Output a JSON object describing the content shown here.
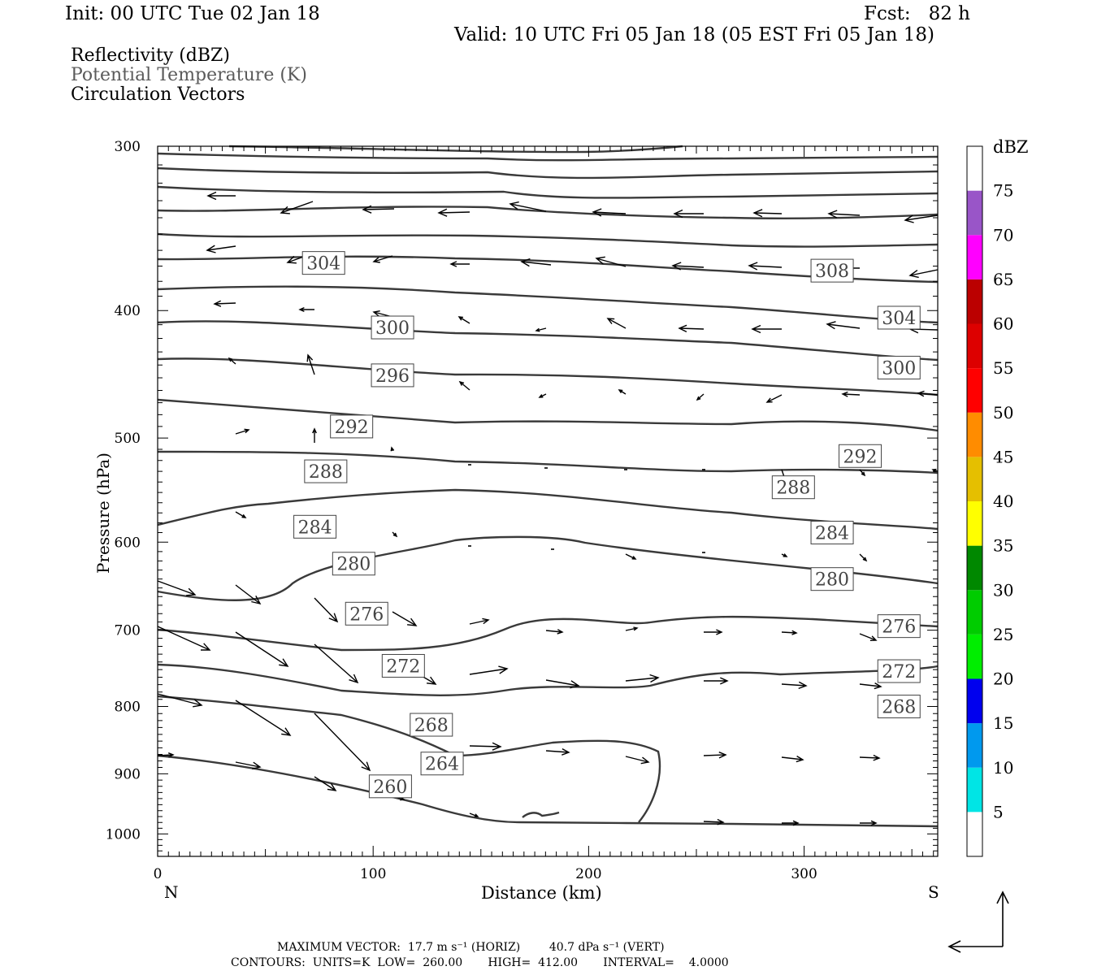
{
  "header": {
    "init": "Init: 00 UTC Tue 02 Jan 18",
    "fcst": "Fcst:   82 h",
    "valid": "Valid: 10 UTC Fri 05 Jan 18 (05 EST Fri 05 Jan 18)",
    "field1": "Reflectivity (dBZ)",
    "field2": "Potential Temperature (K)",
    "field3": "Circulation Vectors"
  },
  "footer": {
    "line1": "MAXIMUM VECTOR:  17.7 m s⁻¹ (HORIZ)        40.7 dPa s⁻¹ (VERT)",
    "line2": "CONTOURS:  UNITS=K  LOW=  260.00       HIGH=  412.00       INTERVAL=    4.0000"
  },
  "colors": {
    "contour": "#3a3a3a",
    "vector": "#000000",
    "frame": "#000000"
  },
  "chart_data": {
    "type": "line",
    "xlabel": "Distance (km)",
    "ylabel": "Pressure (hPa)",
    "xlim": [
      0,
      362
    ],
    "ylim": [
      1040,
      300
    ],
    "y_scale": "log",
    "x_ticks": [
      0,
      100,
      200,
      300
    ],
    "y_ticks": [
      300,
      400,
      500,
      600,
      700,
      800,
      900,
      1000
    ],
    "x_end_labels": {
      "left": "N",
      "right": "S"
    },
    "grid": false,
    "contour_labels": [
      {
        "value": "308",
        "x": 313,
        "p": 373
      },
      {
        "value": "304",
        "x": 77,
        "p": 368
      },
      {
        "value": "304",
        "x": 344,
        "p": 405
      },
      {
        "value": "300",
        "x": 109,
        "p": 412
      },
      {
        "value": "300",
        "x": 344,
        "p": 442
      },
      {
        "value": "296",
        "x": 109,
        "p": 448
      },
      {
        "value": "292",
        "x": 90,
        "p": 490
      },
      {
        "value": "292",
        "x": 326,
        "p": 516
      },
      {
        "value": "288",
        "x": 78,
        "p": 530
      },
      {
        "value": "288",
        "x": 295,
        "p": 545
      },
      {
        "value": "284",
        "x": 73,
        "p": 584
      },
      {
        "value": "284",
        "x": 313,
        "p": 590
      },
      {
        "value": "280",
        "x": 91,
        "p": 623
      },
      {
        "value": "280",
        "x": 313,
        "p": 640
      },
      {
        "value": "276",
        "x": 97,
        "p": 680
      },
      {
        "value": "276",
        "x": 344,
        "p": 695
      },
      {
        "value": "272",
        "x": 114,
        "p": 745
      },
      {
        "value": "272",
        "x": 344,
        "p": 752
      },
      {
        "value": "268",
        "x": 127,
        "p": 826
      },
      {
        "value": "268",
        "x": 344,
        "p": 800
      },
      {
        "value": "264",
        "x": 132,
        "p": 884
      },
      {
        "value": "260",
        "x": 108,
        "p": 920
      }
    ],
    "colorbar": {
      "title": "dBZ",
      "levels": [
        "5",
        "10",
        "15",
        "20",
        "25",
        "30",
        "35",
        "40",
        "45",
        "50",
        "55",
        "60",
        "65",
        "70",
        "75"
      ],
      "colors": [
        "#00e5e5",
        "#0099ee",
        "#0000ee",
        "#00ee00",
        "#00cc00",
        "#008800",
        "#ffff00",
        "#e5bf00",
        "#ff8c00",
        "#ff0000",
        "#dd0000",
        "#bb0000",
        "#ff00ff",
        "#9955c8",
        "#ffffff"
      ]
    }
  }
}
